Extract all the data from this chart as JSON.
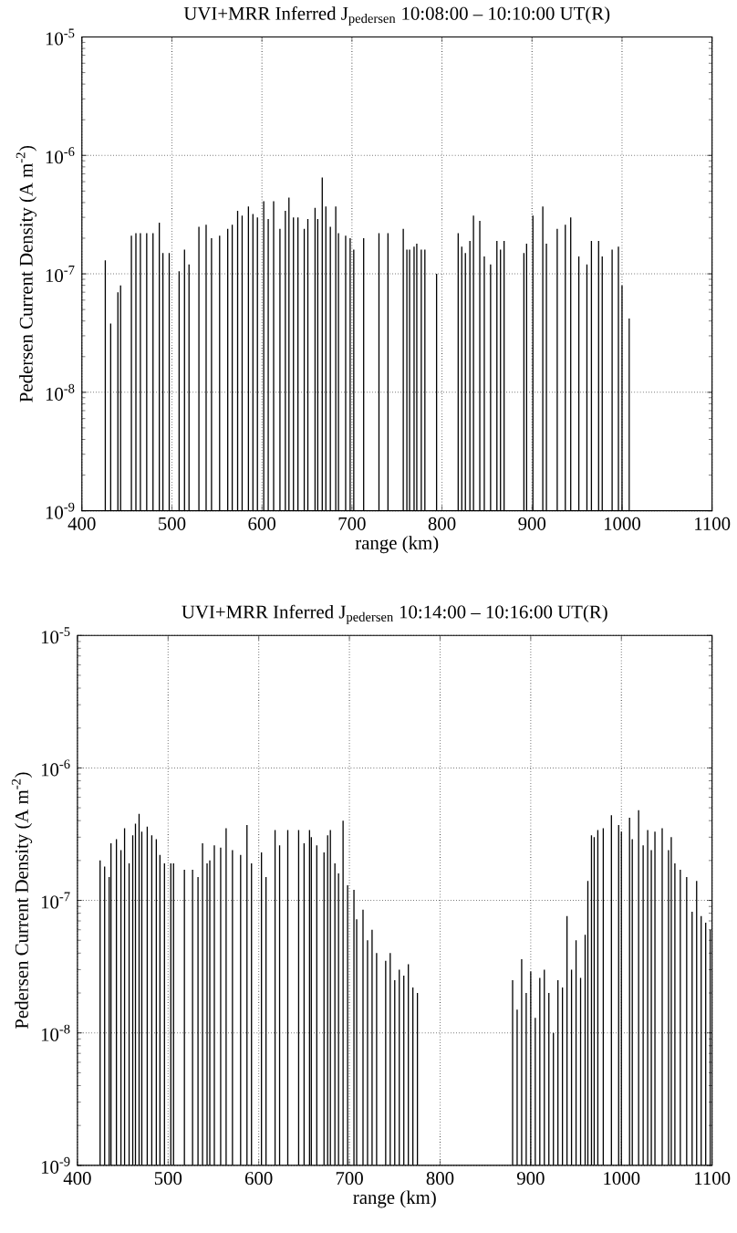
{
  "chart_data": [
    {
      "type": "bar",
      "title": "UVI+MRR Inferred J$_{pedersen}$ 10:08:00 – 10:10:00 UT(R)",
      "xlabel": "range (km)",
      "ylabel": "Pedersen Current Density (A m$^{-2}$)",
      "x": [
        426,
        432,
        440,
        443,
        455,
        460,
        465,
        472,
        479,
        486,
        490,
        497,
        508,
        514,
        519,
        530,
        538,
        544,
        553,
        562,
        567,
        573,
        578,
        585,
        590,
        595,
        602,
        607,
        613,
        620,
        626,
        630,
        635,
        640,
        647,
        651,
        659,
        662,
        667,
        671,
        676,
        682,
        685,
        693,
        698,
        702,
        713,
        730,
        740,
        757,
        761,
        764,
        769,
        772,
        777,
        781,
        794,
        818,
        822,
        826,
        831,
        835,
        842,
        847,
        854,
        861,
        865,
        869,
        891,
        894,
        901,
        912,
        916,
        928,
        937,
        943,
        952,
        961,
        966,
        974,
        978,
        989,
        996,
        1000,
        1008
      ],
      "values": [
        1.3e-07,
        3.8e-08,
        7e-08,
        8e-08,
        2.1e-07,
        2.2e-07,
        2.2e-07,
        2.2e-07,
        2.2e-07,
        2.7e-07,
        1.5e-07,
        1.5e-07,
        1.05e-07,
        1.6e-07,
        1.2e-07,
        2.5e-07,
        2.6e-07,
        2e-07,
        2.1e-07,
        2.4e-07,
        2.6e-07,
        3.4e-07,
        3.1e-07,
        3.7e-07,
        3.2e-07,
        3e-07,
        4.1e-07,
        2.9e-07,
        4.1e-07,
        2.4e-07,
        3.4e-07,
        4.4e-07,
        3e-07,
        3e-07,
        2.4e-07,
        2.9e-07,
        3.6e-07,
        2.9e-07,
        6.5e-07,
        3.7e-07,
        2.5e-07,
        3.7e-07,
        2.2e-07,
        2.1e-07,
        2e-07,
        1.6e-07,
        2e-07,
        2.2e-07,
        2.2e-07,
        2.4e-07,
        1.6e-07,
        1.6e-07,
        1.7e-07,
        1.8e-07,
        1.6e-07,
        1.6e-07,
        1e-07,
        2.2e-07,
        1.7e-07,
        1.5e-07,
        1.9e-07,
        3.1e-07,
        2.8e-07,
        1.4e-07,
        1.2e-07,
        1.9e-07,
        1.6e-07,
        1.9e-07,
        1.5e-07,
        1.8e-07,
        3.1e-07,
        3.7e-07,
        1.8e-07,
        2.4e-07,
        2.6e-07,
        3e-07,
        1.4e-07,
        1.2e-07,
        1.9e-07,
        1.9e-07,
        1.4e-07,
        1.6e-07,
        1.7e-07,
        8e-08,
        4.2e-08
      ],
      "color": "#000000",
      "log": true,
      "grid": true,
      "xlim": [
        400,
        1100
      ],
      "ylim": [
        1e-09,
        1e-05
      ],
      "xticks": [
        400,
        500,
        600,
        700,
        800,
        900,
        1000,
        1100
      ],
      "yticks": [
        {
          "value": 1e-09,
          "label": "10$^{-9}$"
        },
        {
          "value": 1e-08,
          "label": "10$^{-8}$"
        },
        {
          "value": 1e-07,
          "label": "10$^{-7}$"
        },
        {
          "value": 1e-06,
          "label": "10$^{-6}$"
        },
        {
          "value": 1e-05,
          "label": "10$^{-5}$"
        }
      ]
    },
    {
      "type": "bar",
      "title": "UVI+MRR Inferred J$_{pedersen}$ 10:14:00 – 10:16:00 UT(R)",
      "xlabel": "range (km)",
      "ylabel": "Pedersen Current Density (A m$^{-2}$)",
      "x": [
        425,
        430,
        435,
        437,
        443,
        448,
        452,
        457,
        461,
        464,
        468,
        471,
        477,
        482,
        487,
        491,
        496,
        503,
        506,
        518,
        527,
        533,
        538,
        543,
        546,
        551,
        558,
        564,
        571,
        580,
        587,
        592,
        603,
        608,
        618,
        623,
        632,
        644,
        650,
        656,
        658,
        664,
        672,
        676,
        679,
        684,
        688,
        693,
        698,
        705,
        708,
        715,
        720,
        725,
        730,
        740,
        745,
        750,
        755,
        760,
        765,
        770,
        775,
        880,
        885,
        890,
        895,
        900,
        905,
        910,
        915,
        920,
        925,
        930,
        935,
        940,
        945,
        950,
        955,
        960,
        963,
        967,
        970,
        974,
        980,
        989,
        997,
        1000,
        1009,
        1012,
        1019,
        1024,
        1029,
        1033,
        1037,
        1045,
        1052,
        1055,
        1059,
        1065,
        1072,
        1078,
        1083,
        1088,
        1093,
        1098
      ],
      "values": [
        2e-07,
        1.8e-07,
        1.5e-07,
        2.7e-07,
        2.9e-07,
        2.4e-07,
        3.5e-07,
        1.9e-07,
        3.1e-07,
        3.8e-07,
        4.5e-07,
        3.3e-07,
        3.6e-07,
        3.1e-07,
        2.9e-07,
        2.2e-07,
        1.9e-07,
        1.9e-07,
        1.9e-07,
        1.7e-07,
        1.7e-07,
        1.5e-07,
        2.7e-07,
        1.9e-07,
        2e-07,
        2.6e-07,
        2.5e-07,
        3.5e-07,
        2.4e-07,
        2.2e-07,
        3.7e-07,
        1.9e-07,
        2.3e-07,
        1.5e-07,
        3.4e-07,
        2.6e-07,
        3.4e-07,
        3.4e-07,
        2.7e-07,
        3.4e-07,
        3e-07,
        2.6e-07,
        2.3e-07,
        3.1e-07,
        3.4e-07,
        1.9e-07,
        1.6e-07,
        4e-07,
        1.3e-07,
        1.2e-07,
        7.2e-08,
        8.5e-08,
        5e-08,
        6e-08,
        4e-08,
        3.5e-08,
        4e-08,
        2.5e-08,
        3e-08,
        2.7e-08,
        3.3e-08,
        2.2e-08,
        2e-08,
        2.5e-08,
        1.5e-08,
        3.6e-08,
        2e-08,
        2.9e-08,
        1.3e-08,
        2.6e-08,
        3e-08,
        2e-08,
        1e-08,
        2.5e-08,
        2.2e-08,
        7.6e-08,
        3e-08,
        5e-08,
        2.6e-08,
        5.5e-08,
        1.4e-07,
        3.1e-07,
        3e-07,
        3.4e-07,
        3.5e-07,
        4.4e-07,
        3.7e-07,
        3.3e-07,
        4.2e-07,
        2.9e-07,
        4.8e-07,
        2.6e-07,
        3.4e-07,
        2.4e-07,
        3.3e-07,
        3.5e-07,
        2.4e-07,
        3e-07,
        1.9e-07,
        1.7e-07,
        1.5e-07,
        8.2e-08,
        1.4e-07,
        7.6e-08,
        6.8e-08,
        6e-08
      ],
      "color": "#000000",
      "log": true,
      "grid": true,
      "xlim": [
        400,
        1100
      ],
      "ylim": [
        1e-09,
        1e-05
      ],
      "xticks": [
        400,
        500,
        600,
        700,
        800,
        900,
        1000,
        1100
      ],
      "yticks": [
        {
          "value": 1e-09,
          "label": "10$^{-9}$"
        },
        {
          "value": 1e-08,
          "label": "10$^{-8}$"
        },
        {
          "value": 1e-07,
          "label": "10$^{-7}$"
        },
        {
          "value": 1e-06,
          "label": "10$^{-6}$"
        },
        {
          "value": 1e-05,
          "label": "10$^{-5}$"
        }
      ]
    }
  ]
}
